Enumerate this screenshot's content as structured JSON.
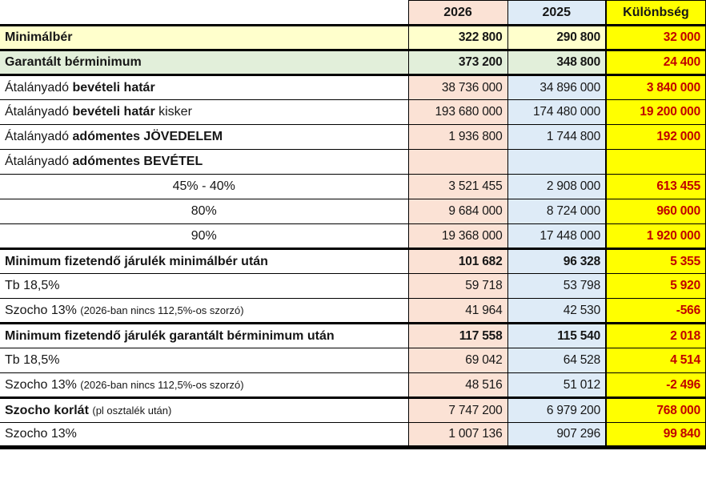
{
  "colors": {
    "col-2026-bg": "#fbe2d5",
    "col-2025-bg": "#deebf7",
    "diff-bg": "#ffff00",
    "row-minimalber-bg": "#ffffcc",
    "row-garantalt-bg": "#e2efda",
    "diff-text": "#c00000",
    "grid": "#000000",
    "text": "#161616"
  },
  "table": {
    "header": {
      "col0": "",
      "col1": "2026",
      "col2": "2025",
      "col3": "Különbség"
    },
    "rows": [
      {
        "name": "minimalber",
        "bg": "yellow",
        "thick": true,
        "bold_vals": true,
        "label": [
          {
            "t": "Minimálbér",
            "b": true
          }
        ],
        "v1": "322 800",
        "v2": "290 800",
        "d": "32 000"
      },
      {
        "name": "garantalt-berminimum",
        "bg": "green",
        "thick": true,
        "bold_vals": true,
        "label": [
          {
            "t": "Garantált bérminimum",
            "b": true
          }
        ],
        "v1": "373 200",
        "v2": "348 800",
        "d": "24 400"
      },
      {
        "name": "atalanyado-beveteli-hatar",
        "label": [
          {
            "t": "Átalányadó "
          },
          {
            "t": "bevételi határ",
            "b": true
          }
        ],
        "v1": "38 736 000",
        "v2": "34 896 000",
        "d": "3 840 000"
      },
      {
        "name": "atalanyado-beveteli-hatar-kisker",
        "label": [
          {
            "t": "Átalányadó "
          },
          {
            "t": "bevételi határ",
            "b": true
          },
          {
            "t": " kisker"
          }
        ],
        "v1": "193 680 000",
        "v2": "174 480 000",
        "d": "19 200 000"
      },
      {
        "name": "atalanyado-adomentes-jovedelem",
        "label": [
          {
            "t": "Átalányadó "
          },
          {
            "t": "adómentes JÖVEDELEM",
            "b": true
          }
        ],
        "v1": "1 936 800",
        "v2": "1 744 800",
        "d": "192 000"
      },
      {
        "name": "atalanyado-adomentes-bevetel",
        "label": [
          {
            "t": "Átalányadó "
          },
          {
            "t": "adómentes BEVÉTEL",
            "b": true
          }
        ],
        "v1": "",
        "v2": "",
        "d": ""
      },
      {
        "name": "rate-45-40",
        "align": "center",
        "label": [
          {
            "t": "45% - 40%"
          }
        ],
        "v1": "3 521 455",
        "v2": "2 908 000",
        "d": "613 455"
      },
      {
        "name": "rate-80",
        "align": "center",
        "label": [
          {
            "t": "80%"
          }
        ],
        "v1": "9 684 000",
        "v2": "8 724 000",
        "d": "960 000"
      },
      {
        "name": "rate-90",
        "align": "center",
        "thick": true,
        "label": [
          {
            "t": "90%"
          }
        ],
        "v1": "19 368 000",
        "v2": "17 448 000",
        "d": "1 920 000"
      },
      {
        "name": "min-jarulek-minimalber",
        "bold_vals": true,
        "label": [
          {
            "t": "Minimum fizetendő járulék minimálbér után",
            "b": true
          }
        ],
        "v1": "101 682",
        "v2": "96 328",
        "d": "5 355"
      },
      {
        "name": "tb-185-minimalber",
        "label": [
          {
            "t": "Tb 18,5%"
          }
        ],
        "v1": "59 718",
        "v2": "53 798",
        "d": "5 920"
      },
      {
        "name": "szocho-13-minimalber",
        "thick": true,
        "label": [
          {
            "t": "Szocho 13% "
          },
          {
            "t": "(2026-ban nincs 112,5%-os szorzó)",
            "small": true
          }
        ],
        "v1": "41 964",
        "v2": "42 530",
        "d": "-566"
      },
      {
        "name": "min-jarulek-garantalt",
        "bold_vals": true,
        "label": [
          {
            "t": "Minimum fizetendő járulék garantált bérminimum után",
            "b": true
          }
        ],
        "v1": "117 558",
        "v2": "115 540",
        "d": "2 018"
      },
      {
        "name": "tb-185-garantalt",
        "label": [
          {
            "t": "Tb 18,5%"
          }
        ],
        "v1": "69 042",
        "v2": "64 528",
        "d": "4 514"
      },
      {
        "name": "szocho-13-garantalt",
        "thick": true,
        "label": [
          {
            "t": "Szocho 13% "
          },
          {
            "t": "(2026-ban nincs 112,5%-os szorzó)",
            "small": true
          }
        ],
        "v1": "48 516",
        "v2": "51 012",
        "d": "-2 496"
      },
      {
        "name": "szocho-korlat",
        "label": [
          {
            "t": "Szocho korlát ",
            "b": true
          },
          {
            "t": "(pl osztalék után)",
            "small": true
          }
        ],
        "v1": "7 747 200",
        "v2": "6 979 200",
        "d": "768 000"
      },
      {
        "name": "szocho-13",
        "label": [
          {
            "t": "Szocho 13%"
          }
        ],
        "v1": "1 007 136",
        "v2": "907 296",
        "d": "99 840"
      }
    ]
  }
}
